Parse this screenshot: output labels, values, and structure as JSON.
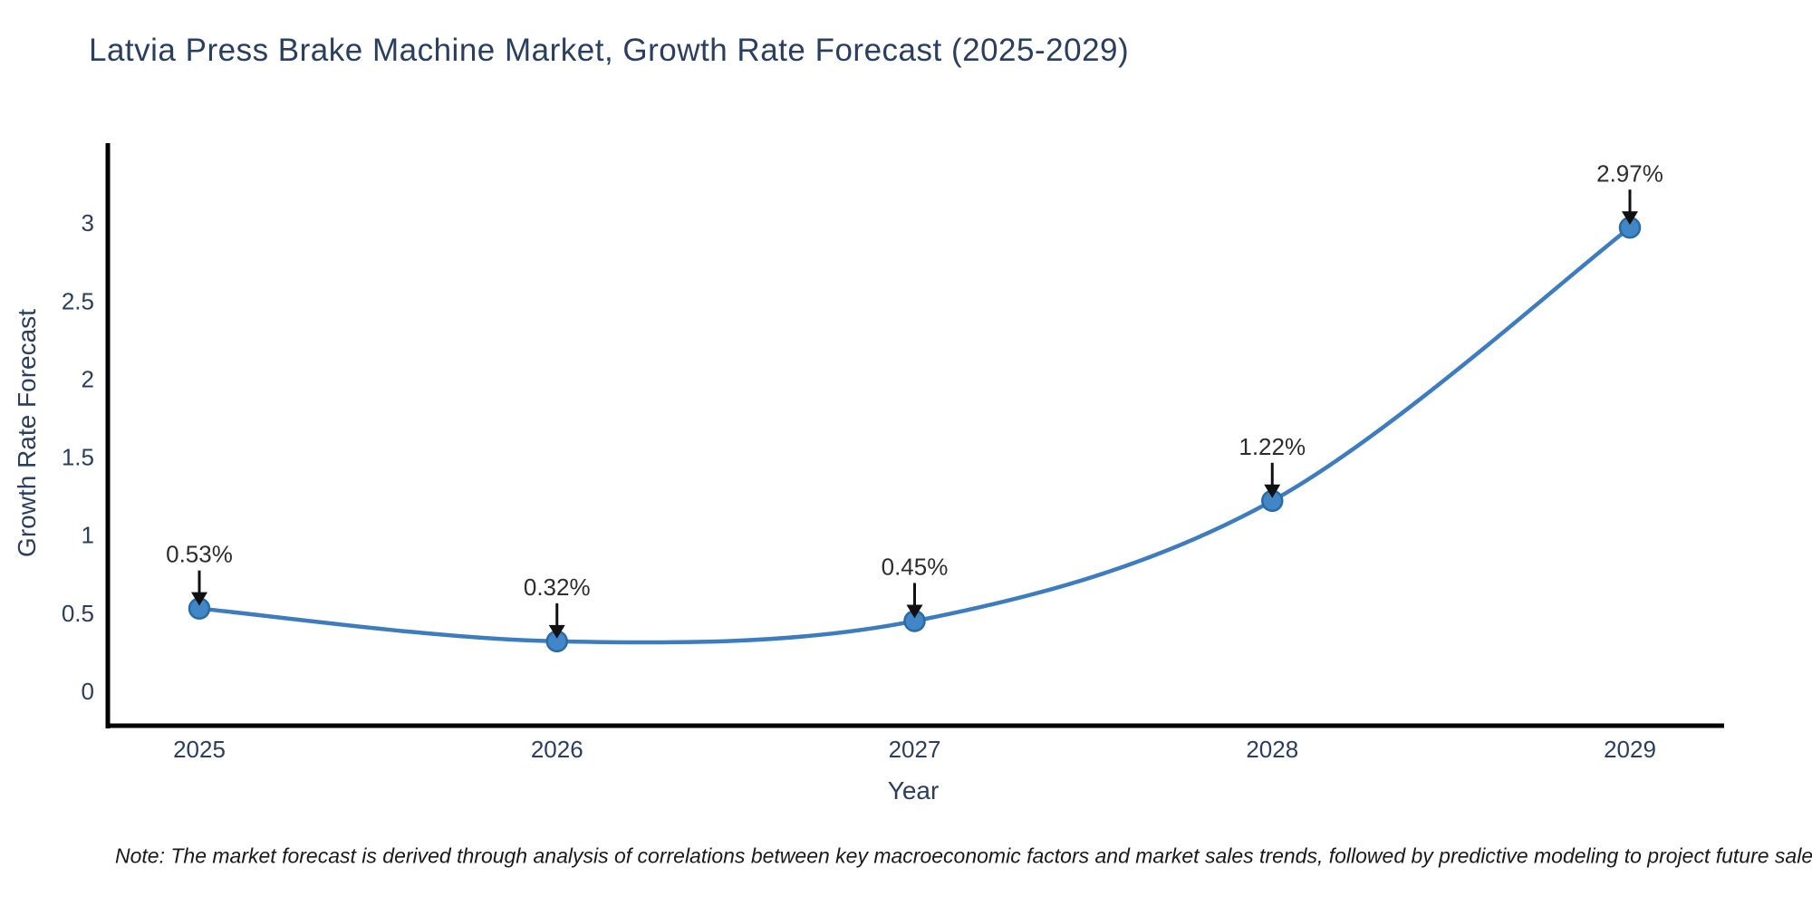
{
  "page": {
    "background": "#ffffff",
    "note": "Note: The market forecast is derived through analysis of correlations between key macroeconomic factors and market sales trends, followed by predictive modeling to project future sales."
  },
  "chart_data": {
    "type": "line",
    "title": "Latvia Press Brake Machine Market, Growth Rate Forecast (2025-2029)",
    "xlabel": "Year",
    "ylabel": "Growth Rate Forecast",
    "x": [
      2025,
      2026,
      2027,
      2028,
      2029
    ],
    "series": [
      {
        "name": "Growth Rate Forecast",
        "values": [
          0.53,
          0.32,
          0.45,
          1.22,
          2.97
        ]
      }
    ],
    "point_labels": [
      "0.53%",
      "0.32%",
      "0.45%",
      "1.22%",
      "2.97%"
    ],
    "annotation_style": "text above point with black arrow pointing down to marker",
    "ylim": [
      -0.25,
      3.5
    ],
    "yticks": [
      0,
      0.5,
      1,
      1.5,
      2,
      2.5,
      3
    ],
    "ytick_labels": [
      "0",
      "0.5",
      "1",
      "1.5",
      "2",
      "2.5",
      "3"
    ],
    "grid": false,
    "legend_position": "none",
    "line_smoothing": "spline",
    "colors": {
      "line": "#3d7dbf",
      "marker_fill": "#4186c6",
      "marker_edge": "#2a6aa5",
      "axis": "#000000",
      "tick_text": "#2a3f5f",
      "annotation_text": "#2d2d2d",
      "arrow": "#111111",
      "title_text": "#2a3f5f"
    }
  }
}
